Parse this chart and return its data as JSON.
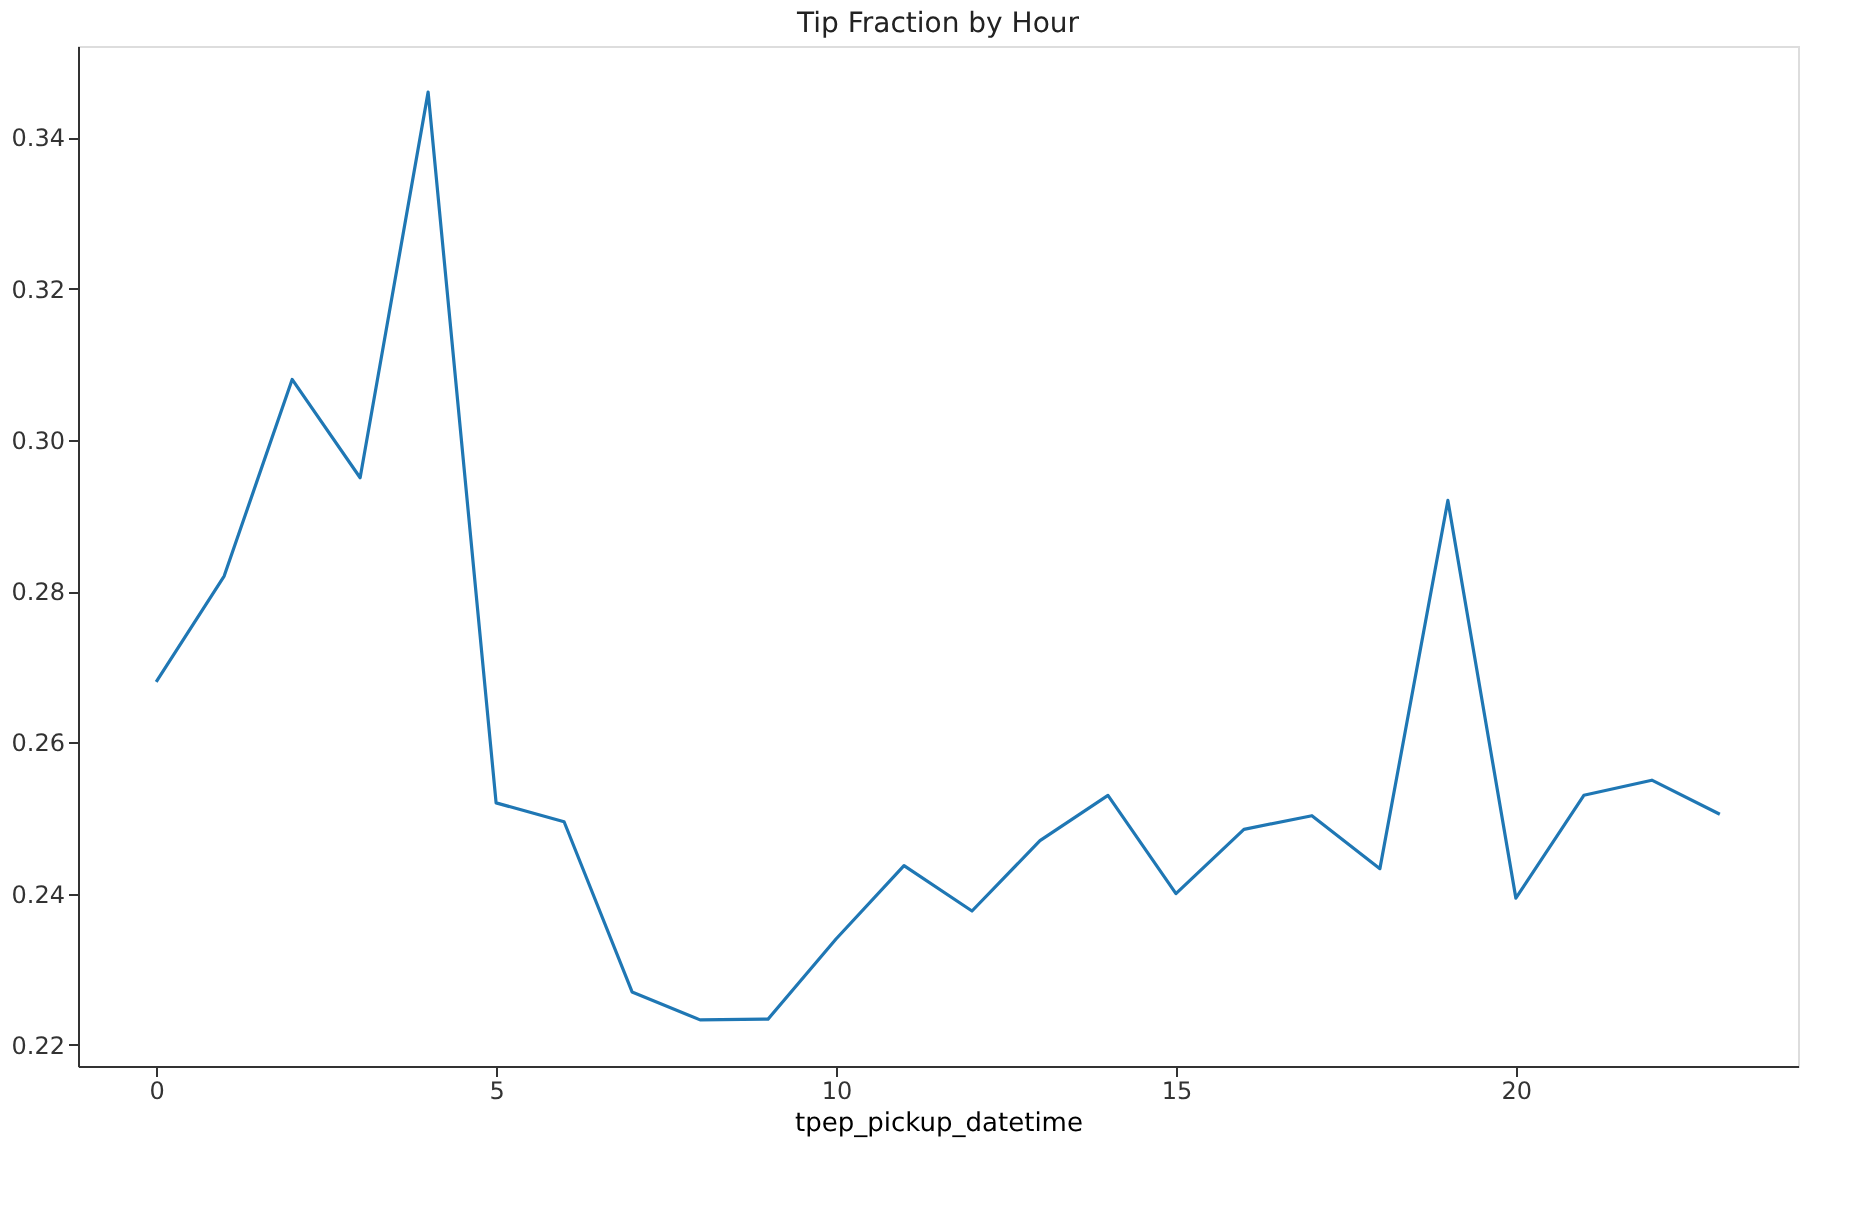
{
  "chart_data": {
    "type": "line",
    "title": "Tip Fraction by Hour",
    "xlabel": "tpep_pickup_datetime",
    "x": [
      0,
      1,
      2,
      3,
      4,
      5,
      6,
      7,
      8,
      9,
      10,
      11,
      12,
      13,
      14,
      15,
      16,
      17,
      18,
      19,
      20,
      21,
      22,
      23
    ],
    "series": [
      {
        "color": "#1f77b4",
        "values": [
          0.268,
          0.282,
          0.308,
          0.295,
          0.346,
          0.252,
          0.2495,
          0.227,
          0.2233,
          0.2234,
          0.234,
          0.2437,
          0.2377,
          0.247,
          0.253,
          0.24,
          0.2485,
          0.2503,
          0.2433,
          0.292,
          0.2394,
          0.253,
          0.255,
          0.2505
        ]
      }
    ],
    "xlim": [
      -1.15,
      24.15
    ],
    "ylim": [
      0.2172,
      0.3521
    ],
    "xticks": [
      0,
      5,
      10,
      15,
      20
    ],
    "yticks": [
      0.22,
      0.24,
      0.26,
      0.28,
      {
        "value": 0.3,
        "label": "0.30"
      },
      0.32,
      0.34
    ],
    "grid": false,
    "legend": false,
    "marker": "none",
    "line_style": "solid"
  }
}
